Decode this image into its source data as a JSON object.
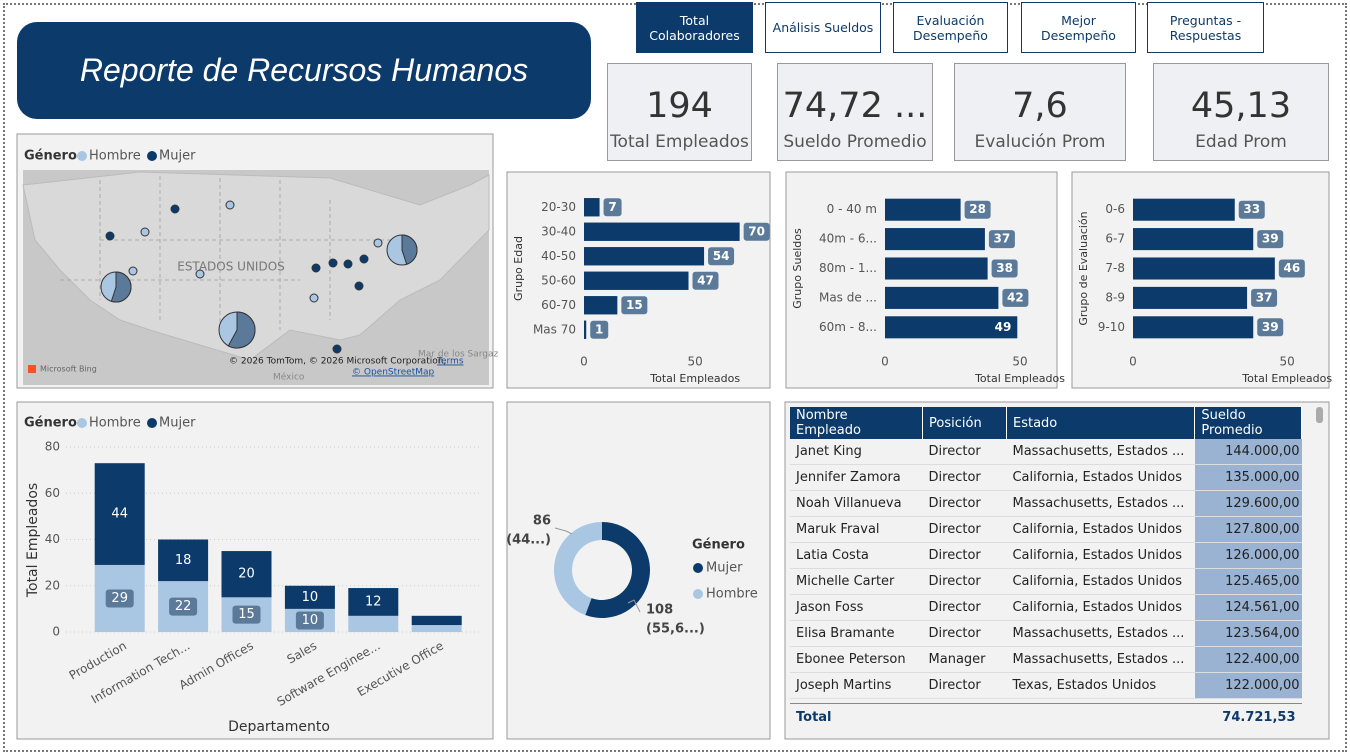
{
  "header": {
    "title": "Reporte de Recursos Humanos"
  },
  "nav": [
    "Total Colaboradores",
    "Análisis Sueldos",
    "Evaluación Desempeño",
    "Mejor Desempeño",
    "Preguntas - Respuestas"
  ],
  "nav_active": 0,
  "kpis": [
    {
      "value": 194,
      "label": "Total Empleados"
    },
    {
      "value": "74,72 ...",
      "label": "Sueldo Promedio"
    },
    {
      "value": "7,6",
      "label": "Evalución Prom"
    },
    {
      "value": "45,13",
      "label": "Edad Prom"
    }
  ],
  "chart_data": [
    {
      "type": "map",
      "legend_title": "Género",
      "series": [
        {
          "name": "Hombre",
          "color": "#a9c6e3"
        },
        {
          "name": "Mujer",
          "color": "#0b3a6b"
        }
      ],
      "country_label": "ESTADOS UNIDOS",
      "sea_label": "Mar de los Sargaz",
      "gulf_label": "México",
      "attribution": "© 2026 TomTom, © 2026 Microsoft Corporation,",
      "terms": "Terms",
      "osm": "© OpenStreetMap",
      "provider": "Microsoft Bing"
    },
    {
      "type": "hbar",
      "y_label": "Grupo Edad",
      "x_label": "Total Empleados",
      "color": "#0b3a6b",
      "categories": [
        "20-30",
        "30-40",
        "40-50",
        "50-60",
        "60-70",
        "Mas 70"
      ],
      "values": [
        7,
        70,
        54,
        47,
        15,
        1
      ],
      "xlim": [
        0,
        85
      ],
      "xticks": [
        0,
        50
      ]
    },
    {
      "type": "hbar",
      "y_label": "Grupo Sueldos",
      "x_label": "Total Empleados",
      "color": "#0b3a6b",
      "categories": [
        "0 - 40 m",
        "40m - 6...",
        "80m - 1...",
        "Mas de ...",
        "60m - 8..."
      ],
      "values": [
        28,
        37,
        38,
        42,
        49
      ],
      "xlim": [
        0,
        60
      ],
      "xticks": [
        0,
        50
      ]
    },
    {
      "type": "hbar",
      "y_label": "Grupo de Evaluación",
      "x_label": "Total Empleados",
      "color": "#0b3a6b",
      "categories": [
        "0-6",
        "6-7",
        "7-8",
        "8-9",
        "9-10"
      ],
      "values": [
        33,
        39,
        46,
        37,
        39
      ],
      "xlim": [
        0,
        60
      ],
      "xticks": [
        0,
        50
      ]
    },
    {
      "type": "stacked_bar",
      "legend_title": "Género",
      "y_label": "Total Empleados",
      "x_label": "Departamento",
      "categories": [
        "Production",
        "Information Tech...",
        "Admin Offices",
        "Sales",
        "Software Enginee...",
        "Executive Office"
      ],
      "series": [
        {
          "name": "Hombre",
          "color": "#a9c6e3",
          "values": [
            29,
            22,
            15,
            10,
            7,
            3
          ]
        },
        {
          "name": "Mujer",
          "color": "#0b3a6b",
          "values": [
            44,
            18,
            20,
            10,
            12,
            4
          ]
        }
      ],
      "ylim": [
        0,
        80
      ],
      "yticks": [
        0,
        20,
        40,
        60,
        80
      ],
      "grid": true
    },
    {
      "type": "donut",
      "legend_title": "Género",
      "categories": [
        "Mujer",
        "Hombre"
      ],
      "colors": [
        "#0b3a6b",
        "#a9c6e3"
      ],
      "values": [
        108,
        86
      ],
      "value_labels": [
        "(55,6...)",
        "(44...)"
      ]
    }
  ],
  "table": {
    "columns": [
      "Nombre Empleado",
      "Posición",
      "Estado",
      "Sueldo Promedio"
    ],
    "rows": [
      [
        "Janet King",
        "Director",
        "Massachusetts, Estados ...",
        "144.000,00"
      ],
      [
        "Jennifer Zamora",
        "Director",
        "California, Estados Unidos",
        "135.000,00"
      ],
      [
        "Noah Villanueva",
        "Director",
        "Massachusetts, Estados ...",
        "129.600,00"
      ],
      [
        "Maruk Fraval",
        "Director",
        "California, Estados Unidos",
        "127.800,00"
      ],
      [
        "Latia Costa",
        "Director",
        "California, Estados Unidos",
        "126.000,00"
      ],
      [
        "Michelle Carter",
        "Director",
        "California, Estados Unidos",
        "125.465,00"
      ],
      [
        "Jason Foss",
        "Director",
        "California, Estados Unidos",
        "124.561,00"
      ],
      [
        "Elisa Bramante",
        "Director",
        "Massachusetts, Estados ...",
        "123.564,00"
      ],
      [
        "Ebonee Peterson",
        "Manager",
        "Massachusetts, Estados ...",
        "122.400,00"
      ],
      [
        "Joseph Martins",
        "Director",
        "Texas, Estados Unidos",
        "122.000,00"
      ]
    ],
    "total": [
      "Total",
      "74.721,53"
    ]
  }
}
